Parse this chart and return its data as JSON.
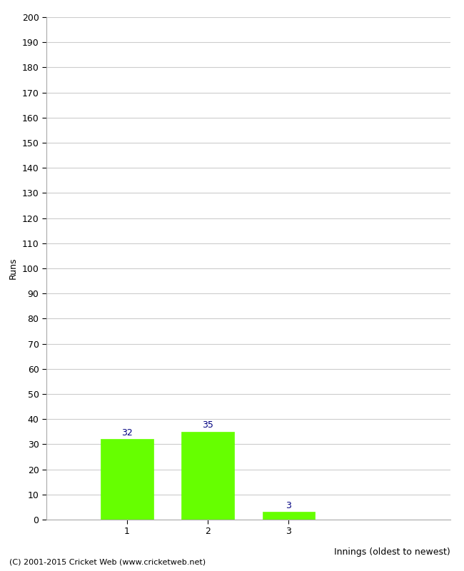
{
  "categories": [
    "1",
    "2",
    "3"
  ],
  "values": [
    32,
    35,
    3
  ],
  "bar_color": "#66ff00",
  "bar_edgecolor": "#66ff00",
  "ylabel": "Runs",
  "xlabel": "Innings (oldest to newest)",
  "ylim": [
    0,
    200
  ],
  "xlim": [
    -0.5,
    4.5
  ],
  "yticks": [
    0,
    10,
    20,
    30,
    40,
    50,
    60,
    70,
    80,
    90,
    100,
    110,
    120,
    130,
    140,
    150,
    160,
    170,
    180,
    190,
    200
  ],
  "bar_positions": [
    0.5,
    1.5,
    2.5
  ],
  "xtick_positions": [
    0.5,
    1.5,
    2.5
  ],
  "bar_width": 0.65,
  "label_color": "#000080",
  "label_fontsize": 9,
  "axis_label_fontsize": 9,
  "tick_fontsize": 9,
  "footer_text": "(C) 2001-2015 Cricket Web (www.cricketweb.net)",
  "footer_fontsize": 8,
  "background_color": "#ffffff",
  "grid_color": "#cccccc"
}
